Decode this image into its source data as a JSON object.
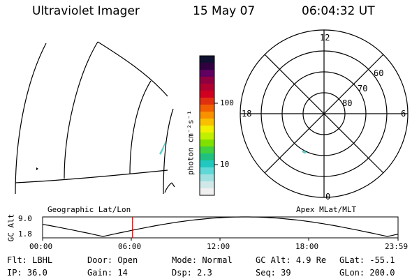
{
  "header": {
    "instrument": "Ultraviolet Imager",
    "date": "15 May 07",
    "time": "06:04:32 UT"
  },
  "colorbar": {
    "unit_label": "photon cm⁻²s⁻¹",
    "ticks": [
      "100",
      "10"
    ],
    "colors": [
      "#101030",
      "#300040",
      "#600060",
      "#900040",
      "#b00030",
      "#d00020",
      "#e03010",
      "#f06000",
      "#f89000",
      "#f8c000",
      "#f0f000",
      "#c0f000",
      "#80e000",
      "#40d040",
      "#20c080",
      "#20c8c0",
      "#60d8d8",
      "#a0e0e0",
      "#d0e8e8",
      "#f0f0f0"
    ]
  },
  "polar": {
    "mlt_labels": {
      "top": "12",
      "left": "18",
      "right": "6",
      "bottom": "0"
    },
    "lat_labels": [
      "60",
      "70",
      "80"
    ]
  },
  "map_labels": {
    "left": "Geographic Lat/Lon",
    "right": "Apex MLat/MLT"
  },
  "altitude_plot": {
    "ylabel": "GC Alt",
    "y_ticks": [
      "9.0",
      "1.8"
    ],
    "x_ticks": [
      "00:00",
      "06:00",
      "12:00",
      "18:00",
      "23:59"
    ],
    "current_time_fraction": 0.253,
    "marker_color": "#c00000"
  },
  "info": {
    "row1": [
      {
        "label": "Flt:",
        "value": "LBHL"
      },
      {
        "label": "Door:",
        "value": "Open"
      },
      {
        "label": "Mode:",
        "value": "Normal"
      },
      {
        "label": "GC Alt:",
        "value": "4.9 Re"
      },
      {
        "label": "GLat:",
        "value": "-55.1"
      }
    ],
    "row2": [
      {
        "label": "IP:",
        "value": "36.0"
      },
      {
        "label": "Gain:",
        "value": "14"
      },
      {
        "label": "Dsp:",
        "value": "2.3"
      },
      {
        "label": "Seq:",
        "value": "39"
      },
      {
        "label": "GLon:",
        "value": "200.0"
      }
    ]
  }
}
